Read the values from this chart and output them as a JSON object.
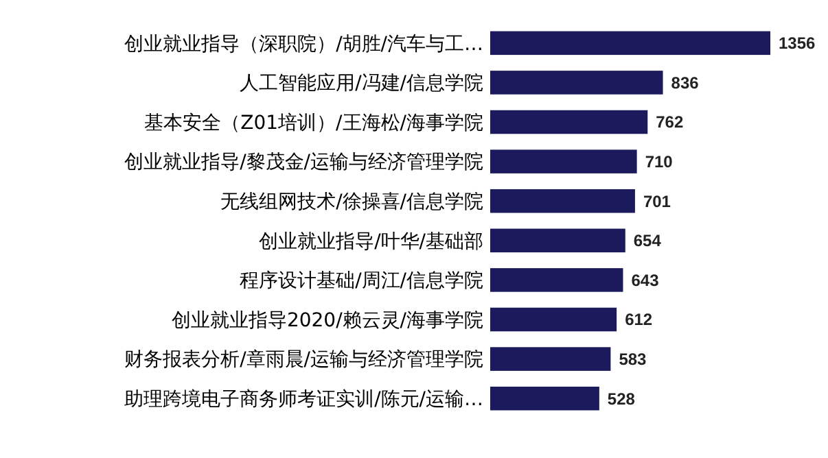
{
  "chart_data": {
    "type": "bar",
    "orientation": "horizontal",
    "categories": [
      "创业就业指导（深职院）/胡胜/汽车与工…",
      "人工智能应用/冯建/信息学院",
      "基本安全（Z01培训）/王海松/海事学院",
      "创业就业指导/黎茂金/运输与经济管理学院",
      "无线组网技术/徐操喜/信息学院",
      "创业就业指导/叶华/基础部",
      "程序设计基础/周江/信息学院",
      "创业就业指导2020/赖云灵/海事学院",
      "财务报表分析/章雨晨/运输与经济管理学院",
      "助理跨境电子商务师考证实训/陈元/运输…"
    ],
    "values": [
      1356,
      836,
      762,
      710,
      701,
      654,
      643,
      612,
      583,
      528
    ],
    "color": "#1a1a5c",
    "data_labels": true
  }
}
